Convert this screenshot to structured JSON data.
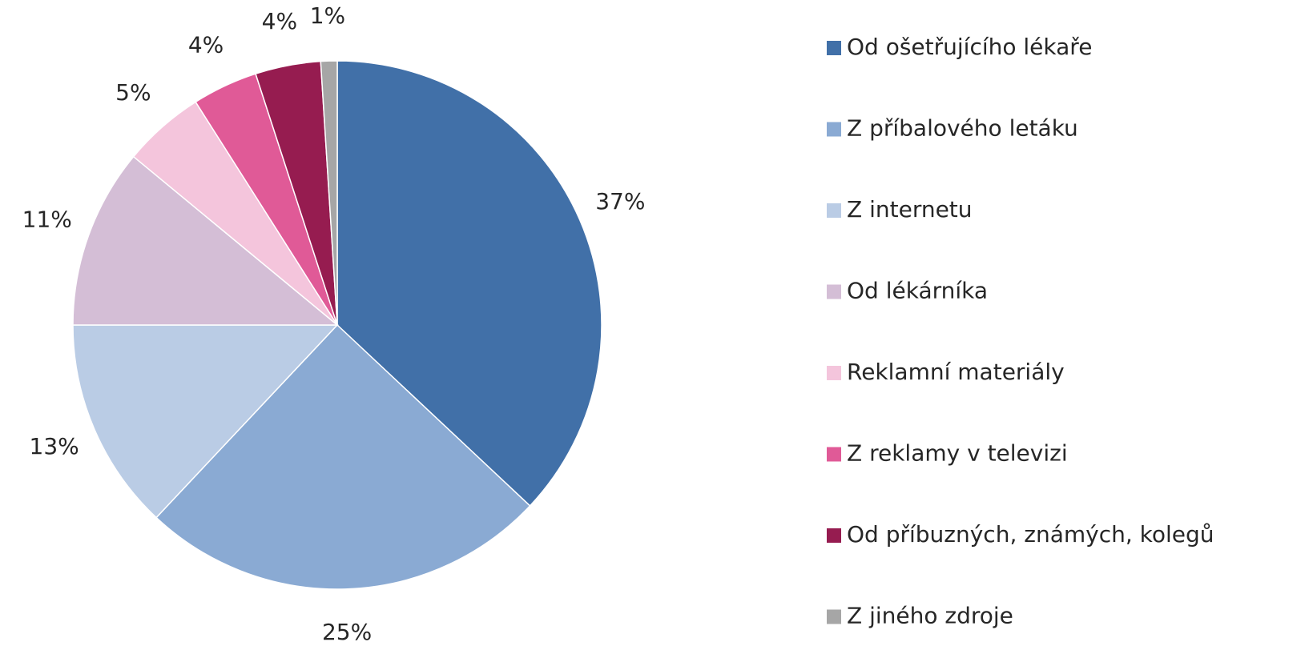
{
  "chart_data": {
    "type": "pie",
    "categories": [
      "Od ošetřujícího lékaře",
      "Z příbalového letáku",
      "Z internetu",
      "Od lékárníka",
      "Reklamní materiály",
      "Z reklamy v televizi",
      "Od příbuzných, známých, kolegů",
      "Z jiného zdroje"
    ],
    "values": [
      37,
      25,
      13,
      11,
      5,
      4,
      4,
      1
    ],
    "value_labels": [
      "37%",
      "25%",
      "13%",
      "11%",
      "5%",
      "4%",
      "4%",
      "1%"
    ],
    "colors": [
      "#4170a8",
      "#8aaad3",
      "#bacce5",
      "#d4bed6",
      "#f4c5dc",
      "#e05a97",
      "#961c50",
      "#a6a6a6"
    ],
    "legend": "right"
  }
}
